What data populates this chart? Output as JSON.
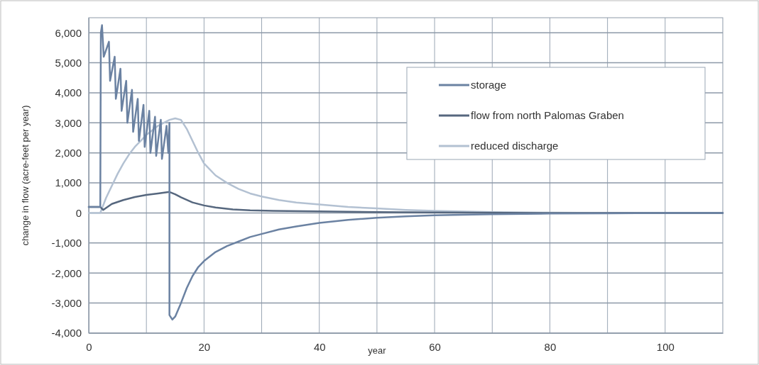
{
  "chart_data": {
    "type": "line",
    "xlabel": "year",
    "ylabel": "change in flow (acre-feet per year)",
    "xlim": [
      0,
      110
    ],
    "ylim": [
      -4000,
      6500
    ],
    "xticks": [
      0,
      {
        "value": 10,
        "label": null
      },
      20,
      {
        "value": 30,
        "label": null
      },
      40,
      {
        "value": 50,
        "label": null
      },
      60,
      {
        "value": 70,
        "label": null
      },
      80,
      {
        "value": 90,
        "label": null
      },
      100
    ],
    "yticks": [
      {
        "value": -4000,
        "label": "-4,000"
      },
      {
        "value": -3000,
        "label": "-3,000"
      },
      {
        "value": -2000,
        "label": "-2,000"
      },
      {
        "value": -1000,
        "label": "-1,000"
      },
      0,
      {
        "value": 1000,
        "label": "1,000"
      },
      {
        "value": 2000,
        "label": "2,000"
      },
      {
        "value": 3000,
        "label": "3,000"
      },
      {
        "value": 4000,
        "label": "4,000"
      },
      {
        "value": 5000,
        "label": "5,000"
      },
      {
        "value": 6000,
        "label": "6,000"
      }
    ],
    "grid": true,
    "legend": "top right",
    "marker": "none",
    "line_style": "solid",
    "series": [
      {
        "name": "storage",
        "color": "#6b82a2",
        "x": [
          0,
          2,
          2.1,
          2.3,
          2.6,
          3.5,
          3.7,
          4.5,
          4.7,
          5.5,
          5.7,
          6.5,
          6.7,
          7.5,
          7.7,
          8.5,
          8.7,
          9.5,
          9.7,
          10.5,
          10.7,
          11.5,
          11.7,
          12.5,
          12.7,
          13.5,
          13.8,
          14,
          14,
          14.5,
          15,
          16,
          17,
          18,
          19,
          20,
          22,
          24,
          26,
          28,
          30,
          33,
          36,
          40,
          45,
          50,
          55,
          60,
          70,
          80,
          90,
          100,
          110
        ],
        "values": [
          200,
          200,
          6000,
          6250,
          5200,
          5700,
          4400,
          5200,
          3800,
          4800,
          3400,
          4400,
          3000,
          4100,
          2700,
          3800,
          2400,
          3600,
          2200,
          3400,
          2000,
          3200,
          1900,
          3100,
          1800,
          2900,
          2000,
          3000,
          -3400,
          -3550,
          -3450,
          -3000,
          -2500,
          -2100,
          -1800,
          -1600,
          -1300,
          -1100,
          -950,
          -800,
          -700,
          -550,
          -450,
          -330,
          -230,
          -160,
          -110,
          -80,
          -40,
          -20,
          -10,
          0,
          0
        ]
      },
      {
        "name": "flow from north Palomas Graben",
        "color": "#56677e",
        "x": [
          0,
          2,
          2.5,
          4,
          6,
          8,
          10,
          12,
          14,
          15,
          16,
          18,
          20,
          22,
          25,
          28,
          32,
          40,
          50,
          60,
          80,
          110
        ],
        "values": [
          200,
          200,
          100,
          300,
          430,
          530,
          600,
          650,
          700,
          620,
          520,
          350,
          250,
          180,
          120,
          90,
          70,
          50,
          30,
          20,
          0,
          0
        ]
      },
      {
        "name": "reduced discharge",
        "color": "#b3c1d2",
        "x": [
          0,
          2,
          3,
          4,
          5,
          6,
          7,
          8,
          9,
          10,
          11,
          12,
          13,
          14,
          15,
          16,
          17,
          18,
          19,
          20,
          22,
          24,
          26,
          28,
          30,
          33,
          36,
          40,
          45,
          50,
          55,
          60,
          70,
          80,
          90,
          100,
          110
        ],
        "values": [
          0,
          0,
          500,
          900,
          1300,
          1650,
          1950,
          2200,
          2400,
          2600,
          2750,
          2900,
          3000,
          3100,
          3150,
          3100,
          2800,
          2400,
          2000,
          1650,
          1250,
          1000,
          800,
          650,
          550,
          430,
          350,
          280,
          200,
          150,
          100,
          70,
          30,
          10,
          0,
          0,
          0
        ]
      }
    ]
  }
}
